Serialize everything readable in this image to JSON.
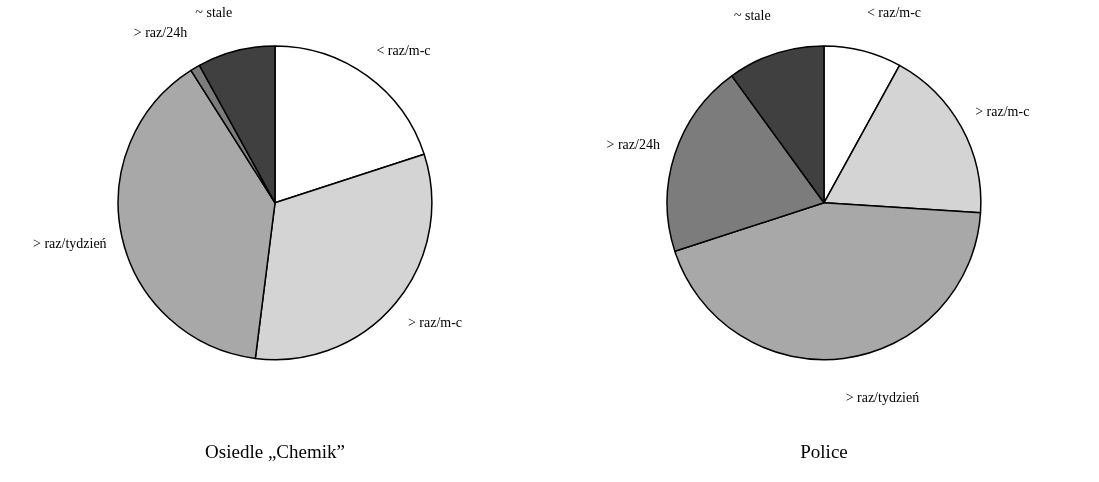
{
  "chart_data": [
    {
      "type": "pie",
      "title": "Osiedle „Chemik”",
      "categories": [
        "< raz/m-c",
        "> raz/m-c",
        "> raz/tydzień",
        "> raz/24h",
        "~ stale"
      ],
      "values": [
        20,
        32,
        39,
        1,
        8
      ],
      "colors": [
        "#ffffff",
        "#d4d4d4",
        "#a8a8a8",
        "#7c7c7c",
        "#404040"
      ]
    },
    {
      "type": "pie",
      "title": "Police",
      "categories": [
        "< raz/m-c",
        "> raz/m-c",
        "> raz/tydzień",
        "> raz/24h",
        "~ stale"
      ],
      "values": [
        8,
        18,
        44,
        20,
        10
      ],
      "colors": [
        "#ffffff",
        "#d4d4d4",
        "#a8a8a8",
        "#7c7c7c",
        "#404040"
      ]
    }
  ]
}
